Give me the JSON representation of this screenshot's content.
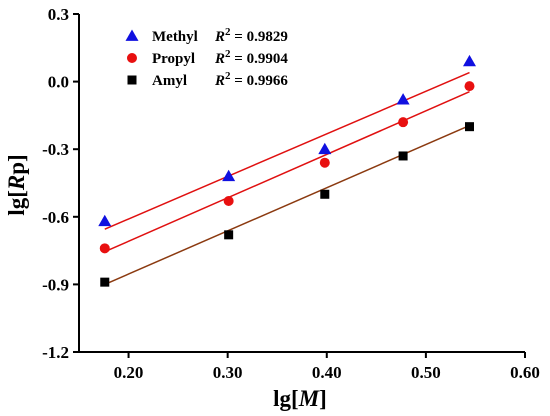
{
  "chart_data": {
    "type": "scatter",
    "title": "",
    "xlabel_prefix": "lg[",
    "xlabel_var": "M",
    "xlabel_suffix": "]",
    "ylabel_prefix": "lg[",
    "ylabel_var": "R",
    "ylabel_sub": "p",
    "ylabel_suffix": "]",
    "xlim": [
      0.15,
      0.6
    ],
    "ylim": [
      -1.2,
      0.3
    ],
    "xticks": [
      0.2,
      0.3,
      0.4,
      0.5,
      0.6
    ],
    "xtick_labels": [
      "0.20",
      "0.30",
      "0.40",
      "0.50",
      "0.60"
    ],
    "yticks": [
      -1.2,
      -0.9,
      -0.6,
      -0.3,
      0.0,
      0.3
    ],
    "ytick_labels": [
      "-1.2",
      "-0.9",
      "-0.6",
      "-0.3",
      "0.0",
      "0.3"
    ],
    "grid": false,
    "legend_position": "top-left",
    "series": [
      {
        "name": "Methyl",
        "marker": "triangle",
        "color": "#1010e0",
        "x": [
          0.176,
          0.301,
          0.398,
          0.477,
          0.544
        ],
        "y": [
          -0.62,
          -0.42,
          -0.3,
          -0.08,
          0.09
        ],
        "fit_label": "= 0.9829",
        "fit_color": "#e01010",
        "fit": [
          [
            0.176,
            -0.655
          ],
          [
            0.544,
            0.04
          ]
        ]
      },
      {
        "name": "Propyl",
        "marker": "circle",
        "color": "#e81010",
        "x": [
          0.176,
          0.301,
          0.398,
          0.477,
          0.544
        ],
        "y": [
          -0.74,
          -0.53,
          -0.36,
          -0.18,
          -0.02
        ],
        "fit_label": "= 0.9904",
        "fit_color": "#e01010",
        "fit": [
          [
            0.176,
            -0.755
          ],
          [
            0.544,
            -0.045
          ]
        ]
      },
      {
        "name": "Amyl",
        "marker": "square",
        "color": "#000000",
        "x": [
          0.176,
          0.301,
          0.398,
          0.477,
          0.544
        ],
        "y": [
          -0.89,
          -0.68,
          -0.5,
          -0.33,
          -0.2
        ],
        "fit_label": "= 0.9966",
        "fit_color": "#8b3a10",
        "fit": [
          [
            0.176,
            -0.9
          ],
          [
            0.544,
            -0.195
          ]
        ]
      }
    ]
  }
}
